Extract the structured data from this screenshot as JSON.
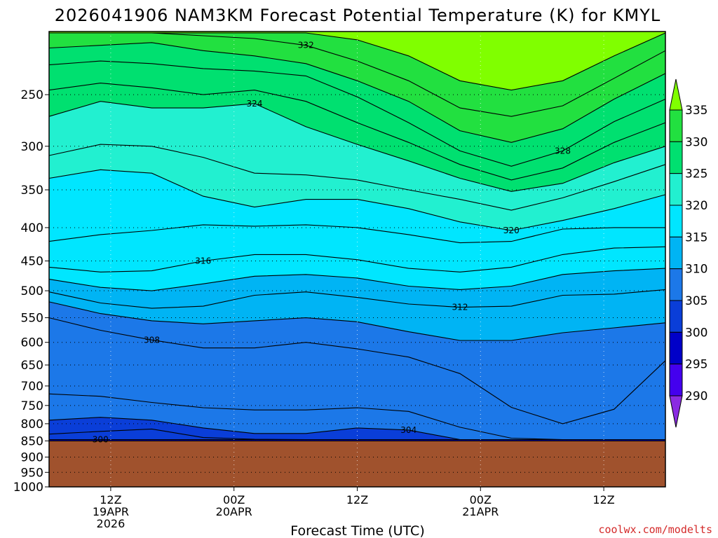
{
  "chart_data": {
    "type": "contour",
    "title": "2026041906 NAM3KM Forecast Potential Temperature (K) for KMYL",
    "xlabel": "Forecast Time (UTC)",
    "ylabel": "",
    "credit": "coolwx.com/modelts",
    "y_axis": {
      "scale": "log",
      "range_hPa": [
        1000,
        200
      ],
      "ticks": [
        250,
        300,
        350,
        400,
        450,
        500,
        550,
        600,
        650,
        700,
        750,
        800,
        850,
        900,
        950,
        1000
      ]
    },
    "x_axis": {
      "range_forecast_hours": [
        0,
        60
      ],
      "ticks": [
        {
          "hour": 6,
          "label": "12Z",
          "sub1": "19APR",
          "sub2": "2026"
        },
        {
          "hour": 18,
          "label": "00Z",
          "sub1": "20APR",
          "sub2": ""
        },
        {
          "hour": 30,
          "label": "12Z",
          "sub1": "",
          "sub2": ""
        },
        {
          "hour": 42,
          "label": "00Z",
          "sub1": "21APR",
          "sub2": ""
        },
        {
          "hour": 54,
          "label": "12Z",
          "sub1": "",
          "sub2": ""
        }
      ]
    },
    "grid": true,
    "terrain": {
      "surface_pressure_hPa": 850,
      "color": "#a0522d"
    },
    "colorbar": {
      "position": "right",
      "levels": [
        290,
        295,
        300,
        305,
        310,
        315,
        320,
        325,
        330,
        335
      ],
      "colors": [
        "#8a2be2",
        "#4400ee",
        "#0000c8",
        "#0a3ed8",
        "#1c78e8",
        "#00b4f4",
        "#00e6ff",
        "#22f0d0",
        "#00e070",
        "#22e040",
        "#80ff00"
      ]
    },
    "contour_interval_K": 2,
    "contours": [
      {
        "level": 300,
        "label": "300",
        "pressures_hPa": [
          846,
          846,
          846,
          846,
          846,
          846,
          846,
          846,
          846,
          846,
          846,
          846,
          846
        ]
      },
      {
        "level": 302,
        "label": "",
        "pressures_hPa": [
          830,
          822,
          815,
          840,
          845,
          846,
          846,
          846,
          846,
          846,
          846,
          846,
          846
        ]
      },
      {
        "level": 304,
        "label": "304",
        "pressures_hPa": [
          790,
          782,
          790,
          812,
          828,
          828,
          812,
          818,
          846,
          846,
          846,
          846,
          846
        ]
      },
      {
        "level": 306,
        "label": "",
        "pressures_hPa": [
          720,
          726,
          742,
          756,
          762,
          762,
          756,
          766,
          810,
          842,
          846,
          846,
          846
        ]
      },
      {
        "level": 308,
        "label": "308",
        "pressures_hPa": [
          550,
          575,
          595,
          612,
          612,
          600,
          614,
          632,
          670,
          755,
          800,
          760,
          640
        ]
      },
      {
        "level": 310,
        "label": "",
        "pressures_hPa": [
          520,
          542,
          556,
          562,
          556,
          550,
          558,
          578,
          596,
          596,
          580,
          570,
          560
        ]
      },
      {
        "level": 312,
        "label": "312",
        "pressures_hPa": [
          502,
          522,
          532,
          528,
          508,
          502,
          512,
          524,
          530,
          528,
          508,
          506,
          498
        ]
      },
      {
        "level": 314,
        "label": "",
        "pressures_hPa": [
          480,
          494,
          500,
          488,
          475,
          472,
          478,
          492,
          498,
          492,
          472,
          466,
          462
        ]
      },
      {
        "level": 316,
        "label": "316",
        "pressures_hPa": [
          460,
          468,
          466,
          450,
          440,
          440,
          448,
          462,
          468,
          460,
          440,
          430,
          428
        ]
      },
      {
        "level": 318,
        "label": "",
        "pressures_hPa": [
          420,
          410,
          404,
          396,
          398,
          396,
          400,
          410,
          422,
          420,
          402,
          400,
          400
        ]
      },
      {
        "level": 320,
        "label": "320",
        "pressures_hPa": [
          336,
          326,
          330,
          358,
          372,
          362,
          362,
          374,
          392,
          404,
          390,
          374,
          356
        ]
      },
      {
        "level": 322,
        "label": "",
        "pressures_hPa": [
          310,
          298,
          300,
          312,
          330,
          332,
          338,
          350,
          362,
          376,
          360,
          340,
          320
        ]
      },
      {
        "level": 324,
        "label": "324",
        "pressures_hPa": [
          270,
          256,
          262,
          262,
          258,
          280,
          298,
          316,
          336,
          352,
          342,
          318,
          300
        ]
      },
      {
        "level": 326,
        "label": "",
        "pressures_hPa": [
          246,
          240,
          244,
          250,
          246,
          256,
          276,
          296,
          320,
          338,
          324,
          296,
          276
        ]
      },
      {
        "level": 328,
        "label": "328",
        "pressures_hPa": [
          225,
          222,
          224,
          228,
          230,
          234,
          252,
          276,
          305,
          322,
          305,
          275,
          254
        ]
      },
      {
        "level": 330,
        "label": "",
        "pressures_hPa": [
          212,
          210,
          208,
          214,
          218,
          224,
          238,
          256,
          284,
          296,
          282,
          254,
          232
        ]
      },
      {
        "level": 332,
        "label": "332",
        "pressures_hPa": [
          201,
          201,
          201,
          203,
          205,
          210,
          222,
          238,
          262,
          270,
          260,
          236,
          214
        ]
      },
      {
        "level": 334,
        "label": "",
        "pressures_hPa": [
          201,
          201,
          201,
          201,
          201,
          201,
          206,
          218,
          238,
          246,
          238,
          218,
          201
        ]
      }
    ],
    "contour_x_hours": [
      0,
      5,
      10,
      15,
      20,
      25,
      30,
      35,
      40,
      45,
      50,
      55,
      60
    ]
  }
}
